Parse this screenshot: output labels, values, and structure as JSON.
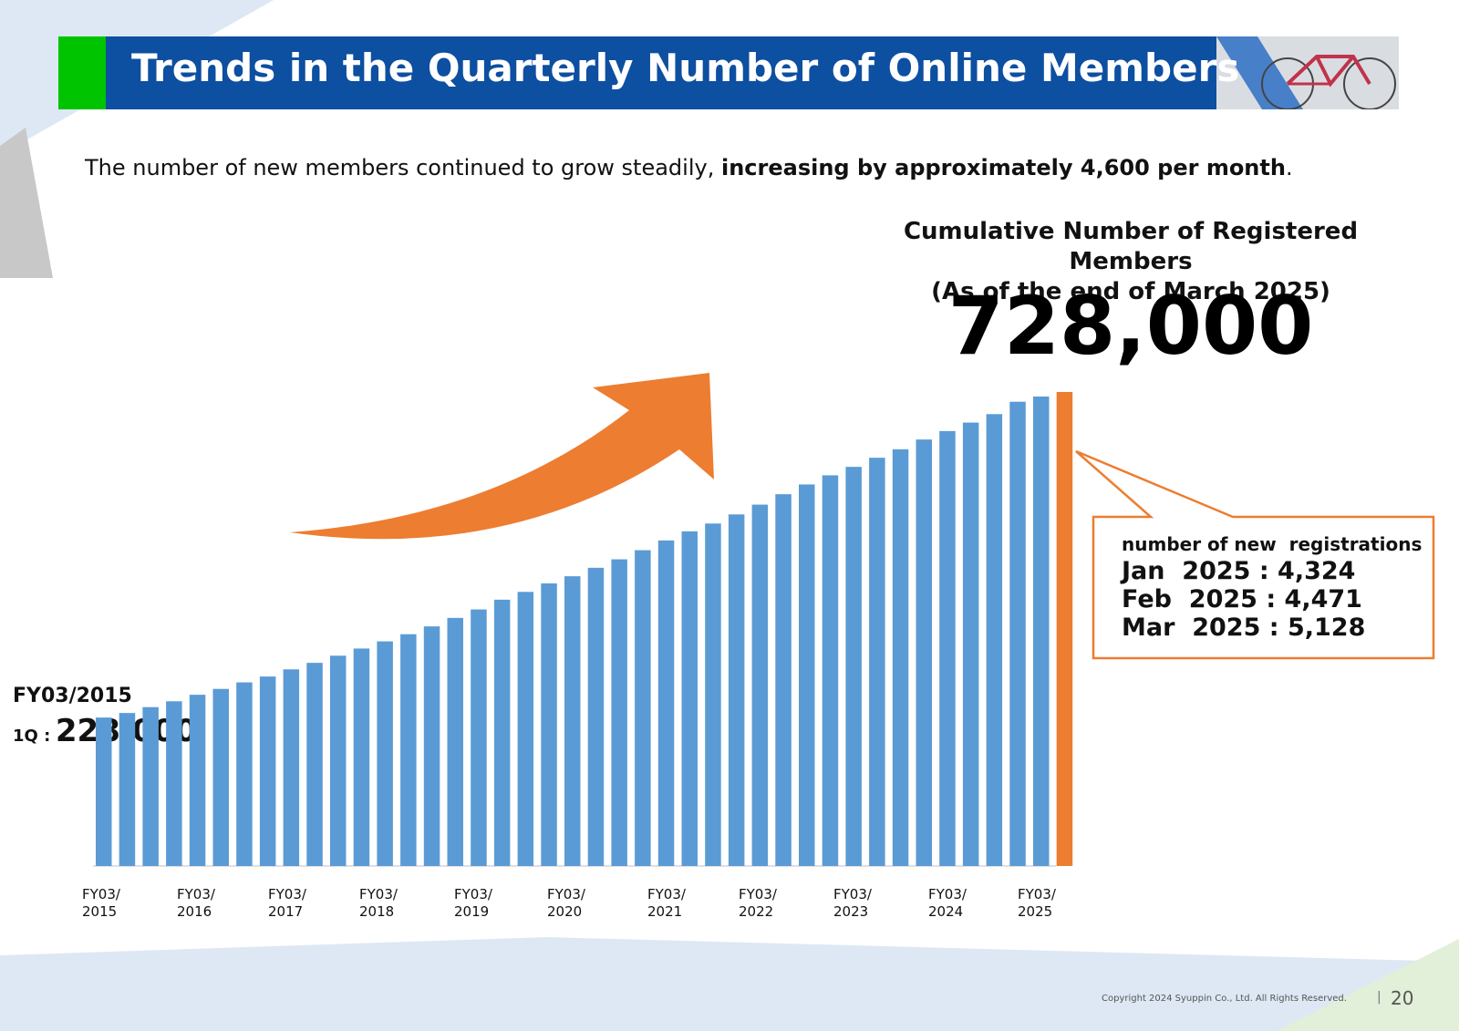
{
  "header": {
    "title": "Trends in the Quarterly Number of Online Members"
  },
  "subtitle": {
    "normal": "The number of new members continued to grow steadily, ",
    "bold": "increasing by approximately 4,600 per month",
    "end": "."
  },
  "cumulative": {
    "line1": "Cumulative Number of Registered Members",
    "line2": "(As of the end of March 2025)",
    "value": "728,000"
  },
  "start": {
    "label": "FY03/2015",
    "quarter": "1Q :",
    "value": "228,000"
  },
  "callout": {
    "heading": "number of new  registrations",
    "rows": [
      "Jan  2025 : 4,324",
      "Feb  2025 : 4,471",
      "Mar  2025 : 5,128"
    ]
  },
  "footer": {
    "copyright": "Copyright 2024 Syuppin Co., Ltd. All Rights Reserved.",
    "page": "20"
  },
  "colors": {
    "bar": "#5b9bd5",
    "highlight": "#ed7d31",
    "title_bg": "#0d4fa0",
    "accent": "#00c400"
  },
  "chart_data": {
    "type": "bar",
    "x_tick_labels": [
      [
        "FY03/",
        "2015"
      ],
      [
        "FY03/",
        "2016"
      ],
      [
        "FY03/",
        "2017"
      ],
      [
        "FY03/",
        "2018"
      ],
      [
        "FY03/",
        "2019"
      ],
      [
        "FY03/",
        "2020"
      ],
      [
        "FY03/",
        "2021"
      ],
      [
        "FY03/",
        "2022"
      ],
      [
        "FY03/",
        "2023"
      ],
      [
        "FY03/",
        "2024"
      ],
      [
        "FY03/",
        "2025"
      ]
    ],
    "values": [
      228000,
      235000,
      244000,
      253000,
      263000,
      272000,
      282000,
      291000,
      302000,
      312000,
      323000,
      334000,
      345000,
      356000,
      368000,
      381000,
      394000,
      409000,
      421000,
      434000,
      445000,
      458000,
      471000,
      485000,
      500000,
      514000,
      526000,
      540000,
      555000,
      571000,
      586000,
      600000,
      613000,
      627000,
      640000,
      655000,
      668000,
      681000,
      694000,
      713000,
      721000,
      728000
    ],
    "highlight_last": true,
    "ylim": [
      0,
      728000
    ],
    "grid": false,
    "legend": "none"
  }
}
